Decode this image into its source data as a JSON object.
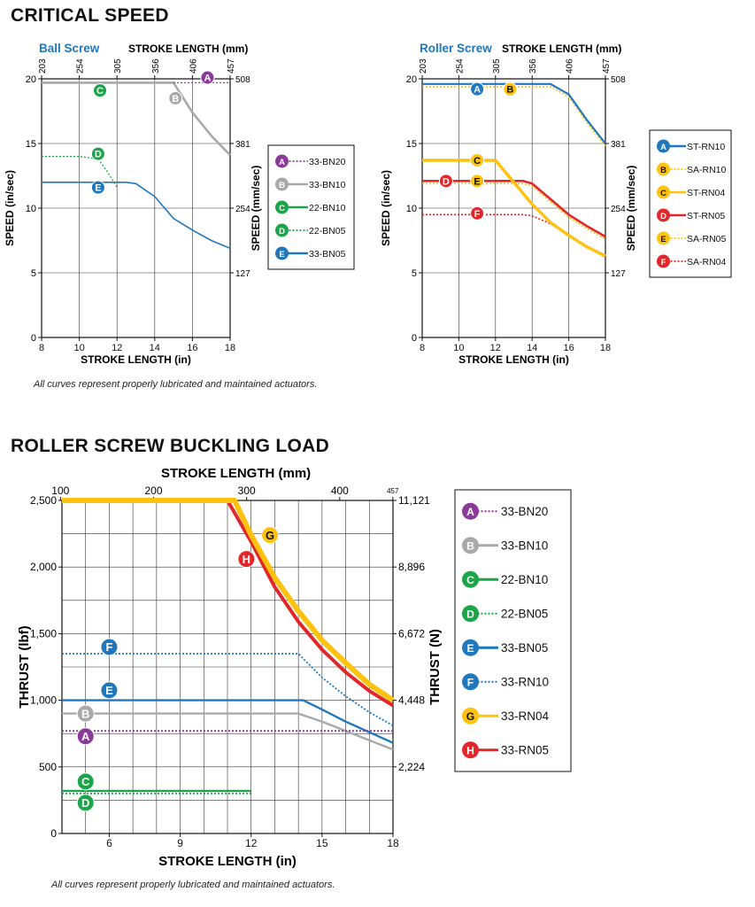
{
  "section1_title": "CRITICAL SPEED",
  "section2_title": "ROLLER SCREW BUCKLING LOAD",
  "note1": "All curves represent properly lubricated and maintained actuators.",
  "note2": "All curves represent properly lubricated and maintained actuators.",
  "colors": {
    "purple": "#8b3a9a",
    "gray": "#a9a9a9",
    "green": "#1aa548",
    "blue": "#1f78bd",
    "yellow": "#ffc20e",
    "red": "#e2262a",
    "title_blue": "#1f78bd"
  },
  "chart_data": [
    {
      "type": "line",
      "title": "Ball Screw",
      "xlabel": "STROKE LENGTH (in)",
      "x2label": "STROKE LENGTH (mm)",
      "ylabel": "SPEED (in/sec)",
      "y2label": "SPEED (mm/sec)",
      "xlim": [
        8,
        18
      ],
      "ylim": [
        0,
        20
      ],
      "xticks": [
        "8",
        "10",
        "12",
        "14",
        "16",
        "18"
      ],
      "yticks": [
        "0",
        "5",
        "10",
        "15",
        "20"
      ],
      "x2ticks": [
        "203",
        "254",
        "305",
        "356",
        "406",
        "457"
      ],
      "y2ticks": [
        "127",
        "254",
        "381",
        "508"
      ],
      "grid": true,
      "legend_position": "right",
      "series": [
        {
          "key": "A",
          "name": "33-BN20",
          "color": "#8b3a9a",
          "style": "dotted",
          "x": [
            15,
            18
          ],
          "y": [
            19.7,
            19.7
          ],
          "marker": [
            16.8,
            20.1
          ]
        },
        {
          "key": "B",
          "name": "33-BN10",
          "color": "#a9a9a9",
          "style": "solid",
          "x": [
            8,
            15,
            16,
            17,
            18
          ],
          "y": [
            19.7,
            19.7,
            17.4,
            15.6,
            14.1
          ],
          "marker": [
            15.1,
            18.5
          ]
        },
        {
          "key": "C",
          "name": "22-BN10",
          "color": "#1aa548",
          "style": "solid",
          "x": [
            8,
            15
          ],
          "y": [
            19.7,
            19.7
          ],
          "marker": [
            11.1,
            19.1
          ]
        },
        {
          "key": "D",
          "name": "22-BN05",
          "color": "#1aa548",
          "style": "dotted",
          "x": [
            8,
            10,
            11,
            11.5,
            12
          ],
          "y": [
            14,
            14,
            13.8,
            12.8,
            11.6
          ],
          "marker": [
            11,
            14.2
          ]
        },
        {
          "key": "E",
          "name": "33-BN05",
          "color": "#1f78bd",
          "style": "solid",
          "x": [
            8,
            12.5,
            13,
            14,
            15,
            16,
            17,
            18
          ],
          "y": [
            12,
            12,
            11.9,
            10.9,
            9.2,
            8.3,
            7.5,
            6.9
          ],
          "marker": [
            11,
            11.6
          ]
        }
      ]
    },
    {
      "type": "line",
      "title": "Roller Screw",
      "xlabel": "STROKE LENGTH (in)",
      "x2label": "STROKE LENGTH (mm)",
      "ylabel": "SPEED (in/sec)",
      "y2label": "SPEED (mm/sec)",
      "xlim": [
        8,
        18
      ],
      "ylim": [
        0,
        20
      ],
      "xticks": [
        "8",
        "10",
        "12",
        "14",
        "16",
        "18"
      ],
      "yticks": [
        "0",
        "5",
        "10",
        "15",
        "20"
      ],
      "x2ticks": [
        "203",
        "254",
        "305",
        "356",
        "406",
        "457"
      ],
      "y2ticks": [
        "127",
        "254",
        "381",
        "508"
      ],
      "grid": true,
      "legend_position": "right",
      "series": [
        {
          "key": "A",
          "name": "ST-RN10",
          "color": "#1f78bd",
          "style": "solid",
          "x": [
            8,
            15,
            16,
            17,
            18
          ],
          "y": [
            19.6,
            19.6,
            18.8,
            16.8,
            15
          ],
          "marker": [
            11,
            19.2
          ]
        },
        {
          "key": "B",
          "name": "SA-RN10",
          "color": "#ffc20e",
          "style": "dotted",
          "x": [
            8,
            15,
            16,
            17,
            18
          ],
          "y": [
            19.4,
            19.4,
            18.6,
            16.6,
            14.8
          ],
          "marker": [
            12.8,
            19.2
          ]
        },
        {
          "key": "C",
          "name": "ST-RN04",
          "color": "#ffc20e",
          "style": "solid",
          "x": [
            8,
            12,
            14,
            15,
            16,
            17,
            18
          ],
          "y": [
            13.7,
            13.7,
            10.3,
            8.9,
            7.9,
            7,
            6.3
          ],
          "marker": [
            11,
            13.7
          ]
        },
        {
          "key": "D",
          "name": "ST-RN05",
          "color": "#e2262a",
          "style": "solid",
          "x": [
            8,
            13.5,
            14,
            15,
            16,
            17,
            18
          ],
          "y": [
            12.1,
            12.1,
            11.9,
            10.7,
            9.5,
            8.6,
            7.8
          ],
          "marker": [
            9.3,
            12.1
          ]
        },
        {
          "key": "E",
          "name": "SA-RN05",
          "color": "#ffc20e",
          "style": "dotted",
          "x": [
            8,
            13.5,
            14,
            15,
            16,
            17,
            18
          ],
          "y": [
            11.9,
            11.9,
            11.7,
            10.5,
            9.3,
            8.4,
            7.6
          ],
          "marker": [
            11,
            12.1
          ]
        },
        {
          "key": "F",
          "name": "SA-RN04",
          "color": "#e2262a",
          "style": "dotted",
          "x": [
            8,
            13.5,
            14,
            15,
            16,
            17,
            18
          ],
          "y": [
            9.5,
            9.5,
            9.4,
            8.8,
            7.9,
            7,
            6.2
          ],
          "marker": [
            11,
            9.6
          ]
        }
      ]
    },
    {
      "type": "line",
      "title": "",
      "xlabel": "STROKE LENGTH (in)",
      "x2label": "STROKE LENGTH (mm)",
      "ylabel": "THRUST (lbf)",
      "y2label": "THRUST (N)",
      "xlim": [
        4,
        18
      ],
      "ylim": [
        0,
        2500
      ],
      "xticks": [
        "6",
        "9",
        "12",
        "15",
        "18"
      ],
      "yticks": [
        "0",
        "500",
        "1,000",
        "1,500",
        "2,000",
        "2,500"
      ],
      "x2ticks": [
        "100",
        "200",
        "300",
        "400",
        "457"
      ],
      "y2ticks": [
        "2,224",
        "4,448",
        "6,672",
        "8,896",
        "11,121"
      ],
      "grid": true,
      "legend_position": "right",
      "series": [
        {
          "key": "A",
          "name": "33-BN20",
          "color": "#8b3a9a",
          "style": "dotted",
          "x": [
            4,
            18
          ],
          "y": [
            770,
            770
          ],
          "marker": [
            5,
            730
          ]
        },
        {
          "key": "B",
          "name": "33-BN10",
          "color": "#a9a9a9",
          "style": "solid",
          "x": [
            4,
            14,
            15,
            16,
            17,
            18
          ],
          "y": [
            900,
            900,
            840,
            770,
            700,
            630
          ],
          "marker": [
            5,
            900
          ]
        },
        {
          "key": "C",
          "name": "22-BN10",
          "color": "#1aa548",
          "style": "solid",
          "x": [
            4,
            12
          ],
          "y": [
            320,
            320
          ],
          "marker": [
            5,
            390
          ]
        },
        {
          "key": "D",
          "name": "22-BN05",
          "color": "#1aa548",
          "style": "dotted",
          "x": [
            4,
            12
          ],
          "y": [
            300,
            300
          ],
          "marker": [
            5,
            230
          ]
        },
        {
          "key": "E",
          "name": "33-BN05",
          "color": "#1f78bd",
          "style": "solid",
          "x": [
            4,
            14.2,
            15,
            16,
            17,
            18
          ],
          "y": [
            1000,
            1000,
            930,
            840,
            760,
            680
          ],
          "marker": [
            6,
            1075
          ]
        },
        {
          "key": "F",
          "name": "33-RN10",
          "color": "#1f78bd",
          "style": "dotted",
          "x": [
            4,
            14,
            15,
            16,
            17,
            18
          ],
          "y": [
            1350,
            1350,
            1170,
            1030,
            910,
            810
          ],
          "marker": [
            6,
            1400
          ]
        },
        {
          "key": "G",
          "name": "33-RN04",
          "color": "#ffc20e",
          "style": "solid",
          "x": [
            4,
            11.3,
            12,
            13,
            14,
            15,
            16,
            17,
            18
          ],
          "y": [
            2500,
            2500,
            2240,
            1920,
            1670,
            1450,
            1280,
            1120,
            1000
          ],
          "marker": [
            12.8,
            2240
          ]
        },
        {
          "key": "H",
          "name": "33-RN05",
          "color": "#e2262a",
          "style": "solid",
          "x": [
            4,
            11,
            12,
            13,
            14,
            15,
            16,
            17,
            18
          ],
          "y": [
            2500,
            2500,
            2190,
            1850,
            1590,
            1380,
            1210,
            1070,
            960
          ],
          "marker": [
            11.8,
            2060
          ]
        }
      ]
    }
  ]
}
